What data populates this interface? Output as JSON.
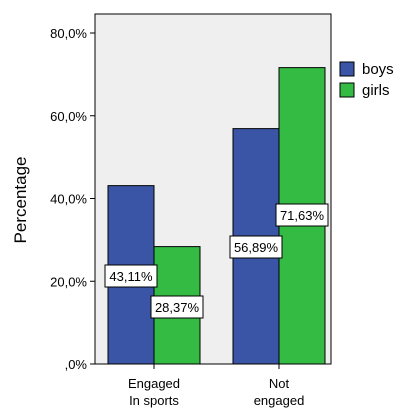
{
  "chart_data": {
    "type": "bar",
    "categories": [
      [
        "Engaged",
        "In sports"
      ],
      [
        "Not",
        "engaged"
      ]
    ],
    "series": [
      {
        "name": "boys",
        "values": [
          43.11,
          56.89
        ],
        "labels": [
          "43,11%",
          "56,89%"
        ],
        "color": "#3a55a5"
      },
      {
        "name": "girls",
        "values": [
          28.37,
          71.63
        ],
        "labels": [
          "28,37%",
          "71,63%"
        ],
        "color": "#33bb44"
      }
    ],
    "ylabel": "Percentage",
    "xlabel": "",
    "ylim": [
      0,
      80
    ],
    "yticks": [
      0,
      20,
      40,
      60,
      80
    ],
    "ytick_labels": [
      ",0%",
      "20,0%",
      "40,0%",
      "60,0%",
      "80,0%"
    ],
    "grid": false,
    "legend": "right",
    "plot_background": "#efefef"
  }
}
